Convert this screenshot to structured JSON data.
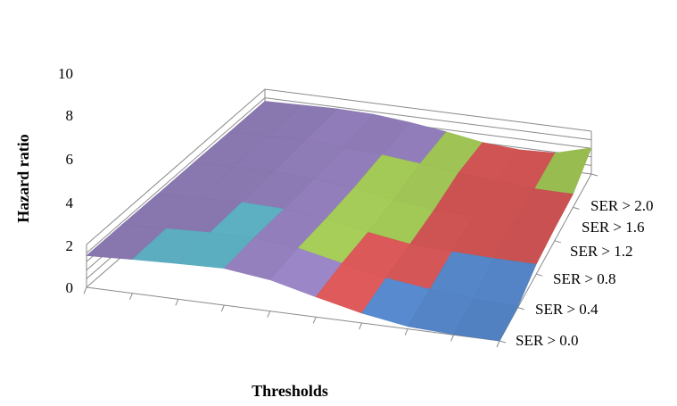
{
  "chart_data": {
    "type": "surface",
    "title": "",
    "xlabel": "Thresholds",
    "ylabel": "Hazard ratio",
    "zlim": [
      0,
      10
    ],
    "z_ticks": [
      "0",
      "2",
      "4",
      "6",
      "8",
      "10"
    ],
    "depth_series": [
      "SER > 0.0",
      "SER > 0.4",
      "SER > 0.8",
      "SER > 1.2",
      "SER > 1.6",
      "SER > 2.0"
    ],
    "band_colors": [
      "#5b8fd6",
      "#e05a5a",
      "#a9d05a",
      "#9a86c6",
      "#67c4d8",
      "#bcd4ef"
    ],
    "x_categories": 10,
    "values": [
      [
        7.4,
        7.9,
        8.3,
        8.6,
        7.3,
        4.7,
        2.3,
        0.6,
        0.1,
        0.0
      ],
      [
        7.4,
        7.8,
        8.2,
        8.3,
        7.2,
        5.0,
        2.9,
        1.6,
        0.7,
        0.2
      ],
      [
        7.3,
        7.6,
        7.9,
        7.6,
        6.6,
        4.7,
        3.2,
        2.7,
        2.4,
        2.3
      ],
      [
        7.3,
        7.6,
        7.8,
        7.2,
        6.3,
        4.7,
        3.6,
        3.3,
        3.0,
        2.9
      ],
      [
        7.2,
        7.5,
        7.7,
        7.0,
        6.5,
        5.6,
        4.6,
        3.8,
        3.2,
        3.1
      ],
      [
        7.2,
        7.4,
        7.6,
        7.4,
        6.6,
        5.5,
        4.1,
        3.5,
        3.8,
        6.1
      ]
    ]
  }
}
